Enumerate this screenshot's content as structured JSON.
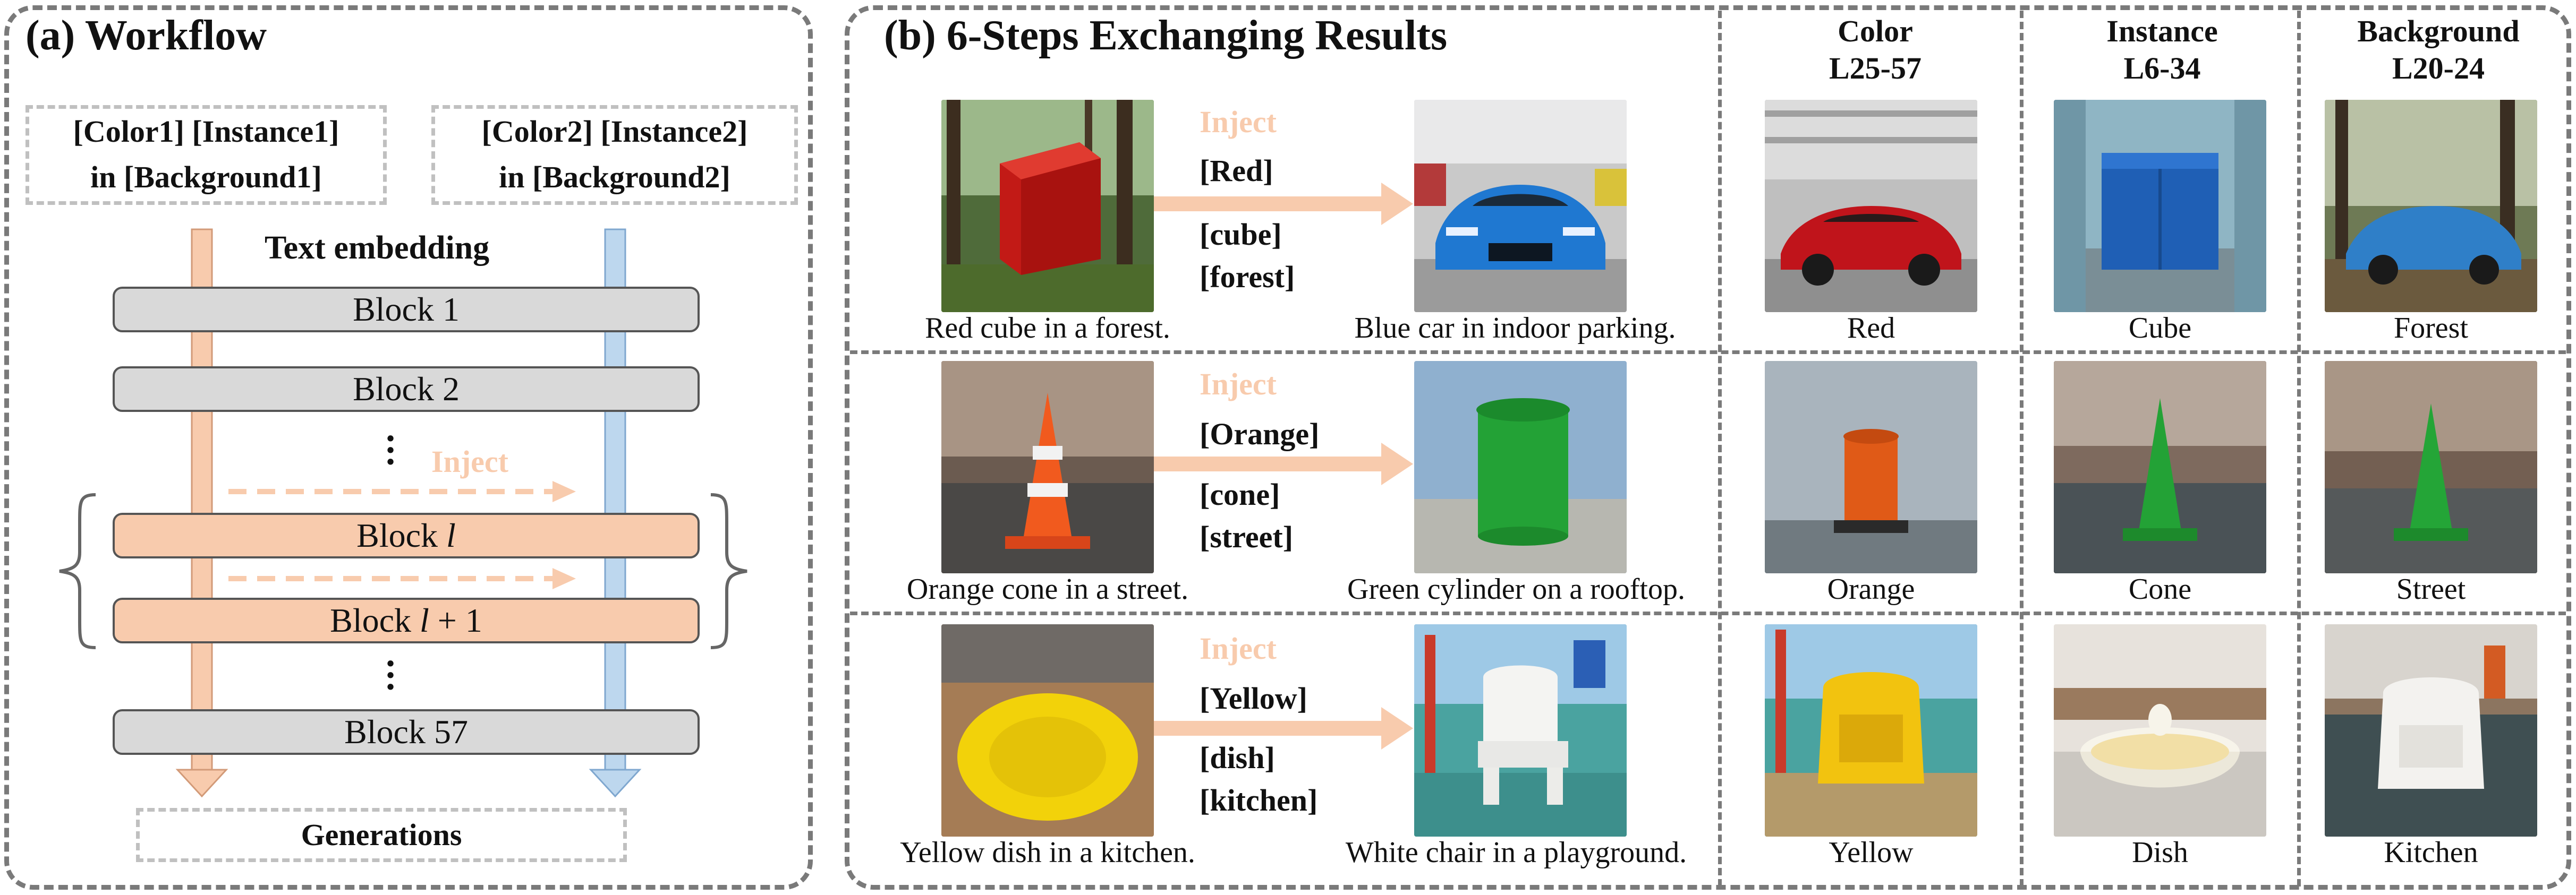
{
  "workflow": {
    "title": "(a) Workflow",
    "prompt1": [
      "[Color1] [Instance1]",
      "in [Background1]"
    ],
    "prompt2": [
      "[Color2] [Instance2]",
      "in [Background2]"
    ],
    "text_embedding": "Text embedding",
    "blocks": [
      "Block 1",
      "Block 2",
      "Block l",
      "Block l + 1",
      "Block 57"
    ],
    "inject_label": "Inject",
    "generations": "Generations"
  },
  "results": {
    "title": "(b) 6-Steps Exchanging Results",
    "columns": [
      {
        "name": "Color",
        "range": "L25-57"
      },
      {
        "name": "Instance",
        "range": "L6-34"
      },
      {
        "name": "Background",
        "range": "L20-24"
      }
    ],
    "rows": [
      {
        "inject": "Inject",
        "tokens": [
          "[Red]",
          "[cube]",
          "[forest]"
        ],
        "source_caption": "Red cube in a forest.",
        "target_caption": "Blue car in indoor parking.",
        "results": [
          "Red",
          "Cube",
          "Forest"
        ]
      },
      {
        "inject": "Inject",
        "tokens": [
          "[Orange]",
          "[cone]",
          "[street]"
        ],
        "source_caption": "Orange cone in a street.",
        "target_caption": "Green cylinder on a rooftop.",
        "results": [
          "Orange",
          "Cone",
          "Street"
        ]
      },
      {
        "inject": "Inject",
        "tokens": [
          "[Yellow]",
          "[dish]",
          "[kitchen]"
        ],
        "source_caption": "Yellow dish in a kitchen.",
        "target_caption": "White chair in a playground.",
        "results": [
          "Yellow",
          "Dish",
          "Kitchen"
        ]
      }
    ]
  },
  "colors": {
    "peach": "#f8cbad",
    "blue": "#bdd7ee",
    "gray_block": "#d9d9d9",
    "panel_border": "#7a7a7a"
  }
}
